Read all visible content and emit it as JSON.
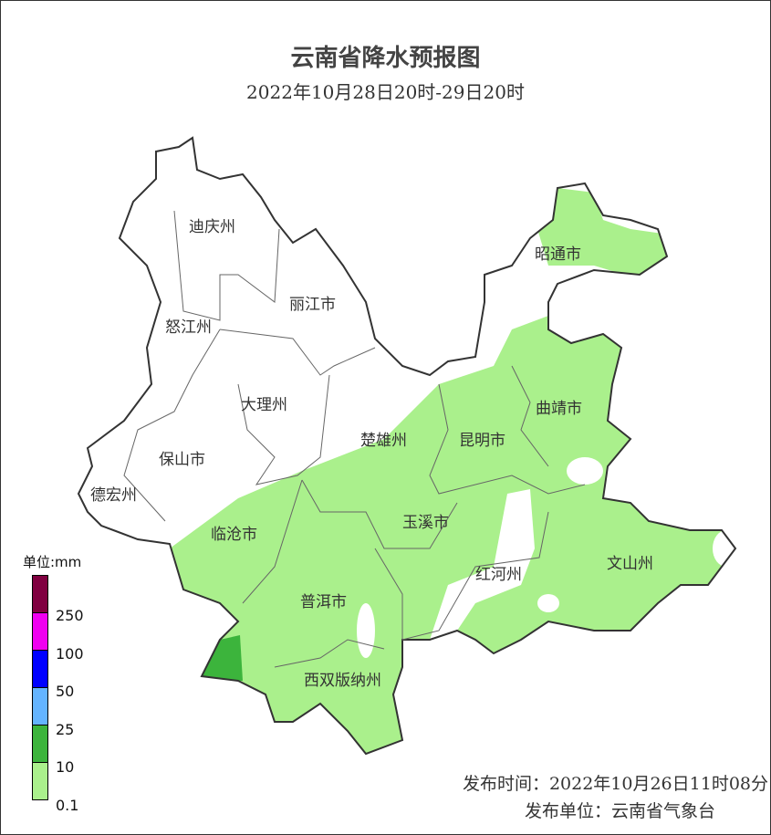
{
  "title": "云南省降水预报图",
  "subtitle": "2022年10月28日20时-29日20时",
  "cities": [
    "迪庆州",
    "丽江市",
    "怒江州",
    "大理州",
    "保山市",
    "德宏州",
    "楚雄州",
    "昆明市",
    "曲靖市",
    "昭通市",
    "玉溪市",
    "临沧市",
    "普洱市",
    "红河州",
    "文山州",
    "西双版纳州"
  ],
  "legend": {
    "title": "单位:mm",
    "colors": [
      "#800040",
      "#f000f0",
      "#0000ff",
      "#64b4ff",
      "#3cb43c",
      "#aaf08c"
    ],
    "labels": [
      "250",
      "100",
      "50",
      "25",
      "10",
      "0.1"
    ]
  },
  "issue": {
    "time": "发布时间：2022年10月26日11时08分",
    "unit": "发布单位：云南省气象台"
  }
}
